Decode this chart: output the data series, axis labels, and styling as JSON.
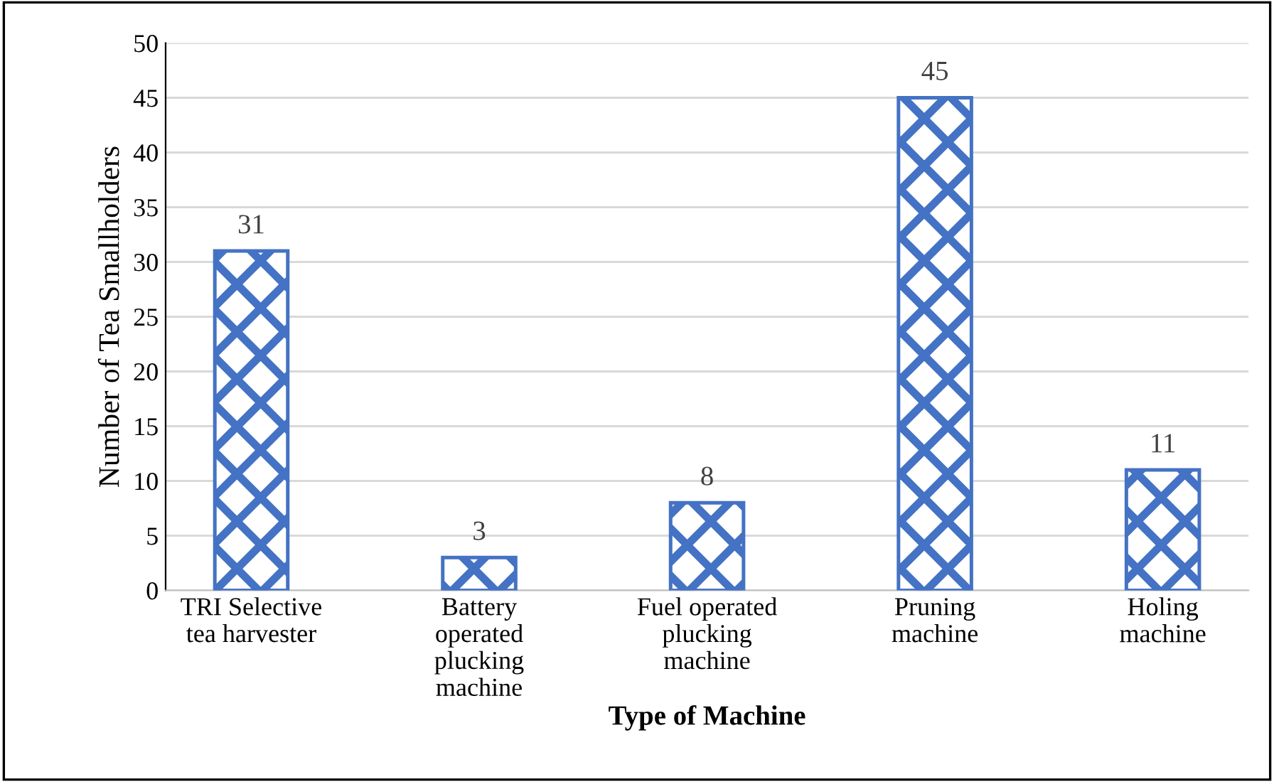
{
  "chart_data": {
    "type": "bar",
    "xlabel": "Type of Machine",
    "ylabel": "Number of Tea Smallholders",
    "categories": [
      "TRI Selective\ntea harvester",
      "Battery\noperated\nplucking\nmachine",
      "Fuel operated\nplucking\nmachine",
      "Pruning\nmachine",
      "Holing\nmachine"
    ],
    "values": [
      31,
      3,
      8,
      45,
      11
    ],
    "color": "#4472c4",
    "ylim": [
      0,
      50
    ],
    "yticks": [
      0,
      5,
      10,
      15,
      20,
      25,
      30,
      35,
      40,
      45,
      50
    ],
    "grid": "y",
    "data_labels": true
  }
}
